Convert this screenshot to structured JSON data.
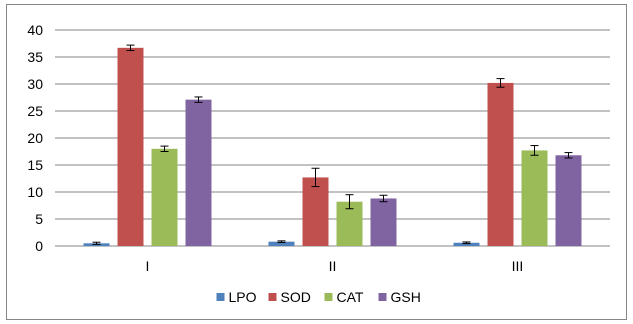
{
  "chart_data": {
    "type": "bar",
    "title": "",
    "xlabel": "",
    "ylabel": "",
    "categories": [
      "I",
      "II",
      "III"
    ],
    "ylim": [
      0,
      40
    ],
    "yticks": [
      0,
      5,
      10,
      15,
      20,
      25,
      30,
      35,
      40
    ],
    "grid": "horizontal",
    "legend_position": "bottom",
    "error_bars": true,
    "series": [
      {
        "name": "LPO",
        "color": "#4F81BD",
        "values": [
          0.5,
          0.8,
          0.6
        ],
        "errors": [
          0.2,
          0.15,
          0.15
        ]
      },
      {
        "name": "SOD",
        "color": "#C0504D",
        "values": [
          36.7,
          12.7,
          30.2
        ],
        "errors": [
          0.5,
          1.7,
          0.8
        ]
      },
      {
        "name": "CAT",
        "color": "#9BBB59",
        "values": [
          18.0,
          8.2,
          17.7
        ],
        "errors": [
          0.5,
          1.3,
          0.9
        ]
      },
      {
        "name": "GSH",
        "color": "#8064A2",
        "values": [
          27.1,
          8.8,
          16.8
        ],
        "errors": [
          0.5,
          0.6,
          0.5
        ]
      }
    ]
  }
}
